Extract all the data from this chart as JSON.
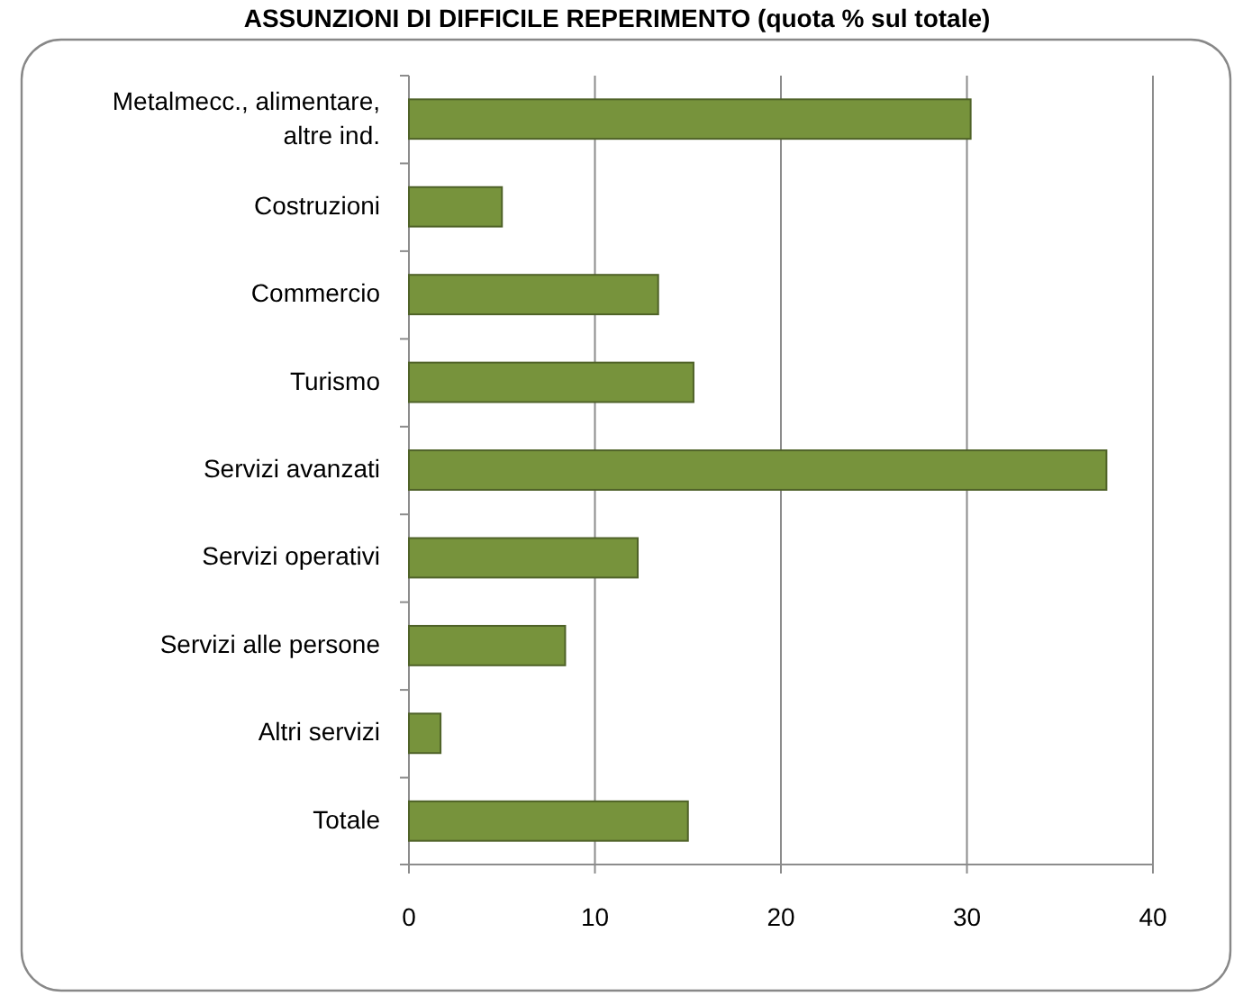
{
  "chart_data": {
    "type": "bar",
    "orientation": "horizontal",
    "title": "ASSUNZIONI DI DIFFICILE REPERIMENTO (quota % sul totale)",
    "categories": [
      "Metalmecc., alimentare, altre ind.",
      "Costruzioni",
      "Commercio",
      "Turismo",
      "Servizi avanzati",
      "Servizi operativi",
      "Servizi alle persone",
      "Altri servizi",
      "Totale"
    ],
    "values": [
      30.2,
      5.0,
      13.4,
      15.3,
      37.5,
      12.3,
      8.4,
      1.7,
      15.0
    ],
    "color": "#77933c",
    "xlim": [
      0,
      40
    ],
    "xticks": [
      0,
      10,
      20,
      30,
      40
    ],
    "grid": "x"
  }
}
